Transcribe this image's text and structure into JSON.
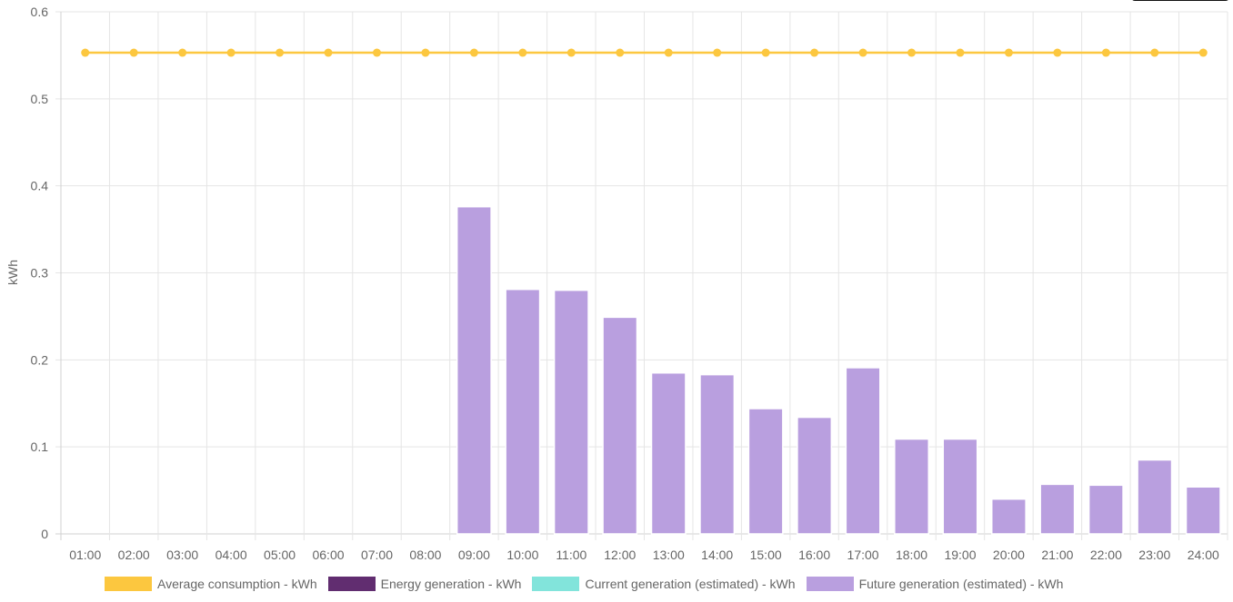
{
  "colors": {
    "grid": "#e5e5e5",
    "axis": "#d0d0d0",
    "average": "#fcc73f",
    "energy": "#612d70",
    "current": "#82e4db",
    "future": "#b99fdf"
  },
  "legend": [
    {
      "label": "Average consumption - kWh",
      "color": "#fcc73f"
    },
    {
      "label": "Energy generation - kWh",
      "color": "#612d70"
    },
    {
      "label": "Current generation (estimated) - kWh",
      "color": "#82e4db"
    },
    {
      "label": "Future generation (estimated) - kWh",
      "color": "#b99fdf"
    }
  ],
  "chart_data": {
    "type": "bar",
    "xlabel": "",
    "ylabel": "kWh",
    "ylim": [
      0,
      0.6
    ],
    "yticks": [
      "0",
      "0.1",
      "0.2",
      "0.3",
      "0.4",
      "0.5",
      "0.6"
    ],
    "grid": true,
    "legend_position": "bottom",
    "categories": [
      "01:00",
      "02:00",
      "03:00",
      "04:00",
      "05:00",
      "06:00",
      "07:00",
      "08:00",
      "09:00",
      "10:00",
      "11:00",
      "12:00",
      "13:00",
      "14:00",
      "15:00",
      "16:00",
      "17:00",
      "18:00",
      "19:00",
      "20:00",
      "21:00",
      "22:00",
      "23:00",
      "24:00"
    ],
    "series": [
      {
        "name": "Average consumption - kWh",
        "type": "line",
        "values": [
          0.553,
          0.553,
          0.553,
          0.553,
          0.553,
          0.553,
          0.553,
          0.553,
          0.553,
          0.553,
          0.553,
          0.553,
          0.553,
          0.553,
          0.553,
          0.553,
          0.553,
          0.553,
          0.553,
          0.553,
          0.553,
          0.553,
          0.553,
          0.553
        ]
      },
      {
        "name": "Future generation (estimated) - kWh",
        "type": "bar",
        "values": [
          0,
          0,
          0,
          0,
          0,
          0,
          0,
          0,
          0.376,
          0.281,
          0.28,
          0.249,
          0.185,
          0.183,
          0.144,
          0.134,
          0.191,
          0.109,
          0.109,
          0.04,
          0.057,
          0.056,
          0.085,
          0.054
        ]
      }
    ]
  }
}
